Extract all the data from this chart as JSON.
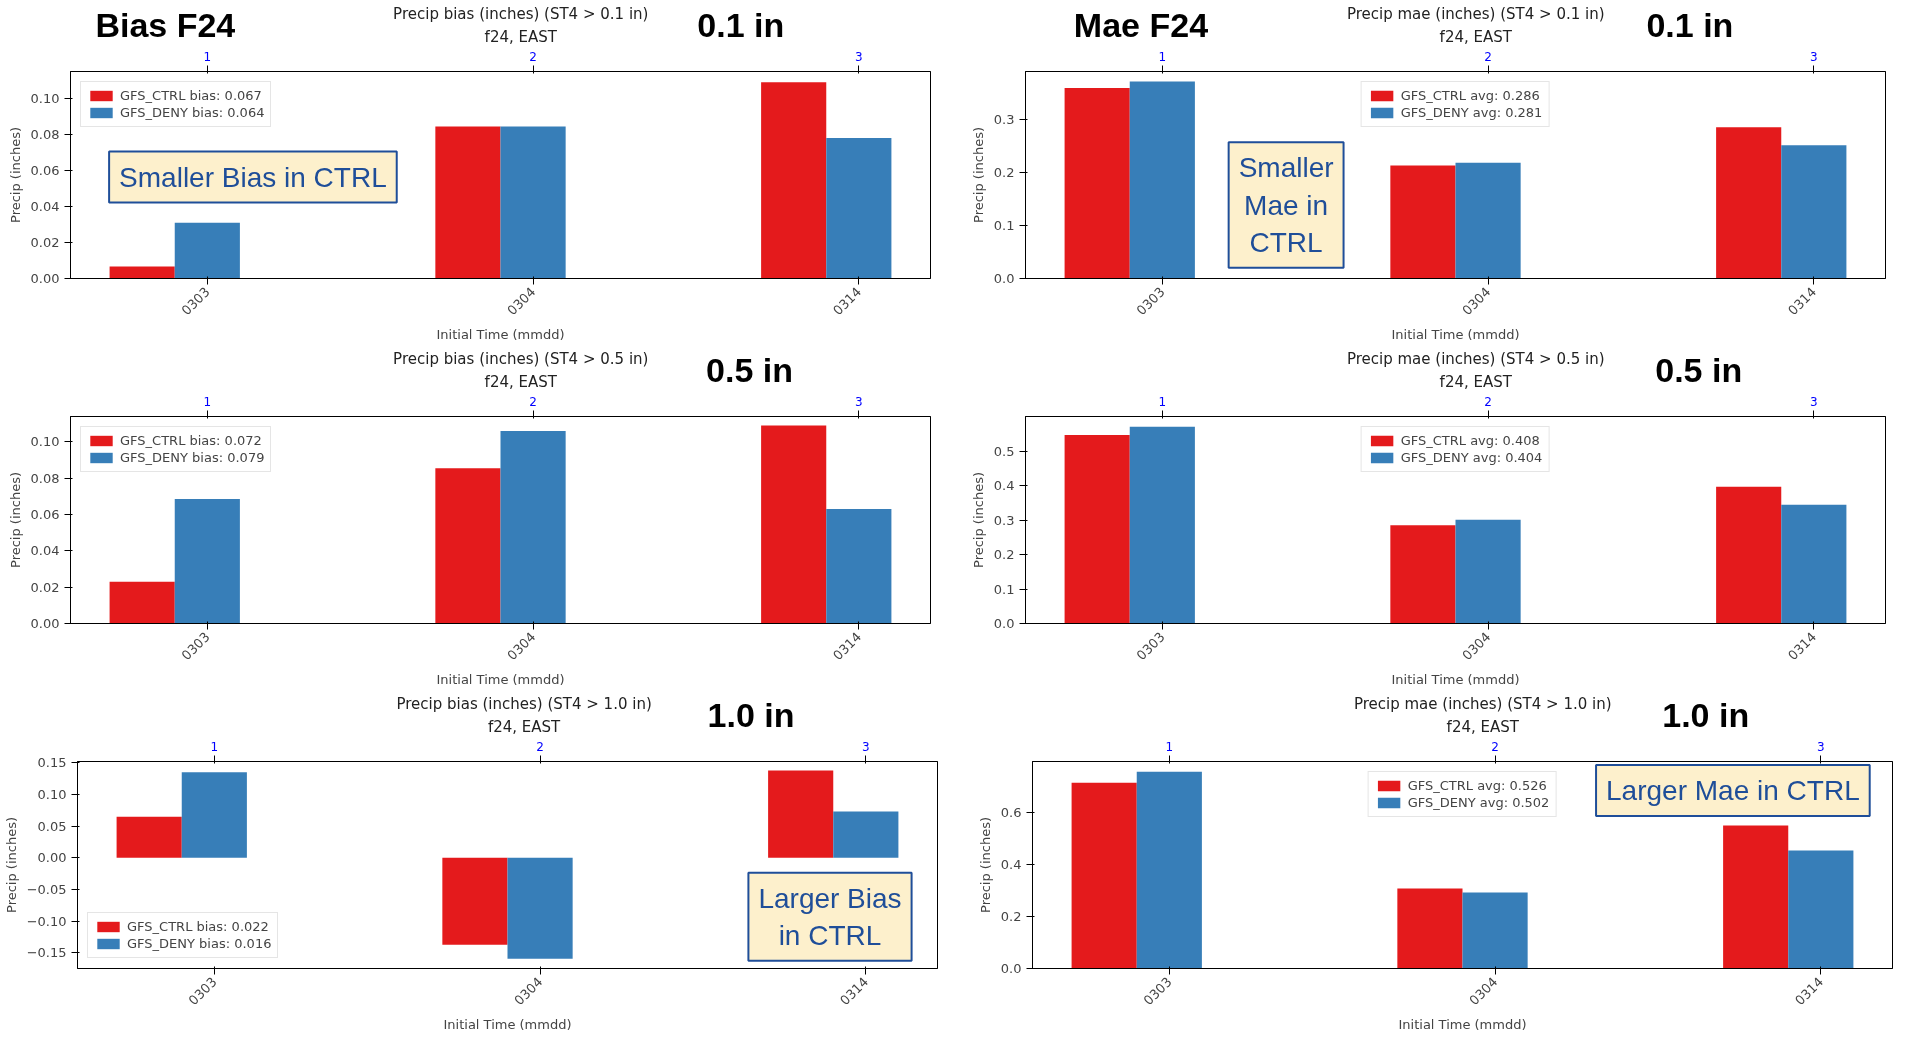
{
  "chart_data": [
    {
      "type": "bar",
      "title": "Precip bias (inches) (ST4 > 0.1 in)",
      "subtitle": "f24, EAST",
      "xlabel": "Initial Time (mmdd)",
      "ylabel": "Precip (inches)",
      "categories": [
        "0303",
        "0304",
        "0314"
      ],
      "series": [
        {
          "name": "GFS_CTRL bias: 0.067",
          "color": "#e41a1c",
          "values": [
            0.0066,
            0.0844,
            0.109
          ]
        },
        {
          "name": "GFS_DENY bias: 0.064",
          "color": "#377eb8",
          "values": [
            0.031,
            0.0844,
            0.078
          ]
        }
      ],
      "ylim": [
        0,
        0.115
      ],
      "yticks": [
        {
          "value": 0,
          "label": "0.00"
        },
        {
          "value": 0.02,
          "label": "0.02"
        },
        {
          "value": 0.04,
          "label": "0.04"
        },
        {
          "value": 0.06,
          "label": "0.06"
        },
        {
          "value": 0.08,
          "label": "0.08"
        },
        {
          "value": 0.1,
          "label": "0.10"
        }
      ],
      "x2lim": [
        0.58,
        3.22
      ],
      "x2ticks": [
        1,
        2,
        3
      ],
      "legend": "top left",
      "grid": false,
      "annotations": [
        "Bias F24",
        "0.1 in",
        "Smaller Bias in CTRL"
      ]
    },
    {
      "type": "bar",
      "title": "Precip mae (inches) (ST4 > 0.1 in)",
      "subtitle": "f24, EAST",
      "xlabel": "Initial Time (mmdd)",
      "ylabel": "Precip (inches)",
      "categories": [
        "0303",
        "0304",
        "0314"
      ],
      "series": [
        {
          "name": "GFS_CTRL avg: 0.286",
          "color": "#e41a1c",
          "values": [
            0.359,
            0.213,
            0.285
          ]
        },
        {
          "name": "GFS_DENY avg: 0.281",
          "color": "#377eb8",
          "values": [
            0.371,
            0.218,
            0.251
          ]
        }
      ],
      "ylim": [
        0,
        0.39
      ],
      "yticks": [
        {
          "value": 0,
          "label": "0.0"
        },
        {
          "value": 0.1,
          "label": "0.1"
        },
        {
          "value": 0.2,
          "label": "0.2"
        },
        {
          "value": 0.3,
          "label": "0.3"
        }
      ],
      "x2lim": [
        0.58,
        3.22
      ],
      "x2ticks": [
        1,
        2,
        3
      ],
      "legend": "top",
      "grid": false,
      "annotations": [
        "Mae F24",
        "0.1 in",
        "Smaller Mae in CTRL"
      ]
    },
    {
      "type": "bar",
      "title": "Precip bias (inches) (ST4 > 0.5 in)",
      "subtitle": "f24, EAST",
      "xlabel": "Initial Time (mmdd)",
      "ylabel": "Precip (inches)",
      "categories": [
        "0303",
        "0304",
        "0314"
      ],
      "series": [
        {
          "name": "GFS_CTRL bias: 0.072",
          "color": "#e41a1c",
          "values": [
            0.023,
            0.0855,
            0.109
          ]
        },
        {
          "name": "GFS_DENY bias: 0.079",
          "color": "#377eb8",
          "values": [
            0.0686,
            0.106,
            0.063
          ]
        }
      ],
      "ylim": [
        0,
        0.114
      ],
      "yticks": [
        {
          "value": 0,
          "label": "0.00"
        },
        {
          "value": 0.02,
          "label": "0.02"
        },
        {
          "value": 0.04,
          "label": "0.04"
        },
        {
          "value": 0.06,
          "label": "0.06"
        },
        {
          "value": 0.08,
          "label": "0.08"
        },
        {
          "value": 0.1,
          "label": "0.10"
        }
      ],
      "x2lim": [
        0.58,
        3.22
      ],
      "x2ticks": [
        1,
        2,
        3
      ],
      "legend": "top left",
      "grid": false,
      "annotations": [
        "0.5 in"
      ]
    },
    {
      "type": "bar",
      "title": "Precip mae (inches) (ST4 > 0.5 in)",
      "subtitle": "f24, EAST",
      "xlabel": "Initial Time (mmdd)",
      "ylabel": "Precip (inches)",
      "categories": [
        "0303",
        "0304",
        "0314"
      ],
      "series": [
        {
          "name": "GFS_CTRL avg: 0.408",
          "color": "#e41a1c",
          "values": [
            0.548,
            0.286,
            0.398
          ]
        },
        {
          "name": "GFS_DENY avg: 0.404",
          "color": "#377eb8",
          "values": [
            0.572,
            0.302,
            0.345
          ]
        }
      ],
      "ylim": [
        0,
        0.602
      ],
      "yticks": [
        {
          "value": 0,
          "label": "0.0"
        },
        {
          "value": 0.1,
          "label": "0.1"
        },
        {
          "value": 0.2,
          "label": "0.2"
        },
        {
          "value": 0.3,
          "label": "0.3"
        },
        {
          "value": 0.4,
          "label": "0.4"
        },
        {
          "value": 0.5,
          "label": "0.5"
        }
      ],
      "x2lim": [
        0.58,
        3.22
      ],
      "x2ticks": [
        1,
        2,
        3
      ],
      "legend": "top",
      "grid": false,
      "annotations": [
        "0.5 in"
      ]
    },
    {
      "type": "bar",
      "title": "Precip bias (inches) (ST4 > 1.0 in)",
      "subtitle": "f24, EAST",
      "xlabel": "Initial Time (mmdd)",
      "ylabel": "Precip (inches)",
      "categories": [
        "0303",
        "0304",
        "0314"
      ],
      "series": [
        {
          "name": "GFS_CTRL bias: 0.022",
          "color": "#e41a1c",
          "values": [
            0.065,
            -0.137,
            0.138
          ]
        },
        {
          "name": "GFS_DENY bias: 0.016",
          "color": "#377eb8",
          "values": [
            0.135,
            -0.159,
            0.073
          ]
        }
      ],
      "ylim": [
        -0.1745,
        0.152
      ],
      "yticks": [
        {
          "value": -0.15,
          "label": "−0.15"
        },
        {
          "value": -0.1,
          "label": "−0.10"
        },
        {
          "value": -0.05,
          "label": "−0.05"
        },
        {
          "value": 0,
          "label": "0.00"
        },
        {
          "value": 0.05,
          "label": "0.05"
        },
        {
          "value": 0.1,
          "label": "0.10"
        },
        {
          "value": 0.15,
          "label": "0.15"
        }
      ],
      "x2lim": [
        0.58,
        3.22
      ],
      "x2ticks": [
        1,
        2,
        3
      ],
      "legend": "bottom left",
      "grid": false,
      "annotations": [
        "1.0 in",
        "Larger Bias in CTRL"
      ]
    },
    {
      "type": "bar",
      "title": "Precip mae (inches) (ST4 > 1.0 in)",
      "subtitle": "f24, EAST",
      "xlabel": "Initial Time (mmdd)",
      "ylabel": "Precip (inches)",
      "categories": [
        "0303",
        "0304",
        "0314"
      ],
      "series": [
        {
          "name": "GFS_CTRL avg: 0.526",
          "color": "#e41a1c",
          "values": [
            0.714,
            0.308,
            0.55
          ]
        },
        {
          "name": "GFS_DENY avg: 0.502",
          "color": "#377eb8",
          "values": [
            0.757,
            0.292,
            0.454
          ]
        }
      ],
      "ylim": [
        0,
        0.796
      ],
      "yticks": [
        {
          "value": 0,
          "label": "0.0"
        },
        {
          "value": 0.2,
          "label": "0.2"
        },
        {
          "value": 0.4,
          "label": "0.4"
        },
        {
          "value": 0.6,
          "label": "0.6"
        }
      ],
      "x2lim": [
        0.58,
        3.22
      ],
      "x2ticks": [
        1,
        2,
        3
      ],
      "legend": "top",
      "grid": false,
      "annotations": [
        "1.0 in",
        "Larger Mae in CTRL"
      ]
    }
  ]
}
